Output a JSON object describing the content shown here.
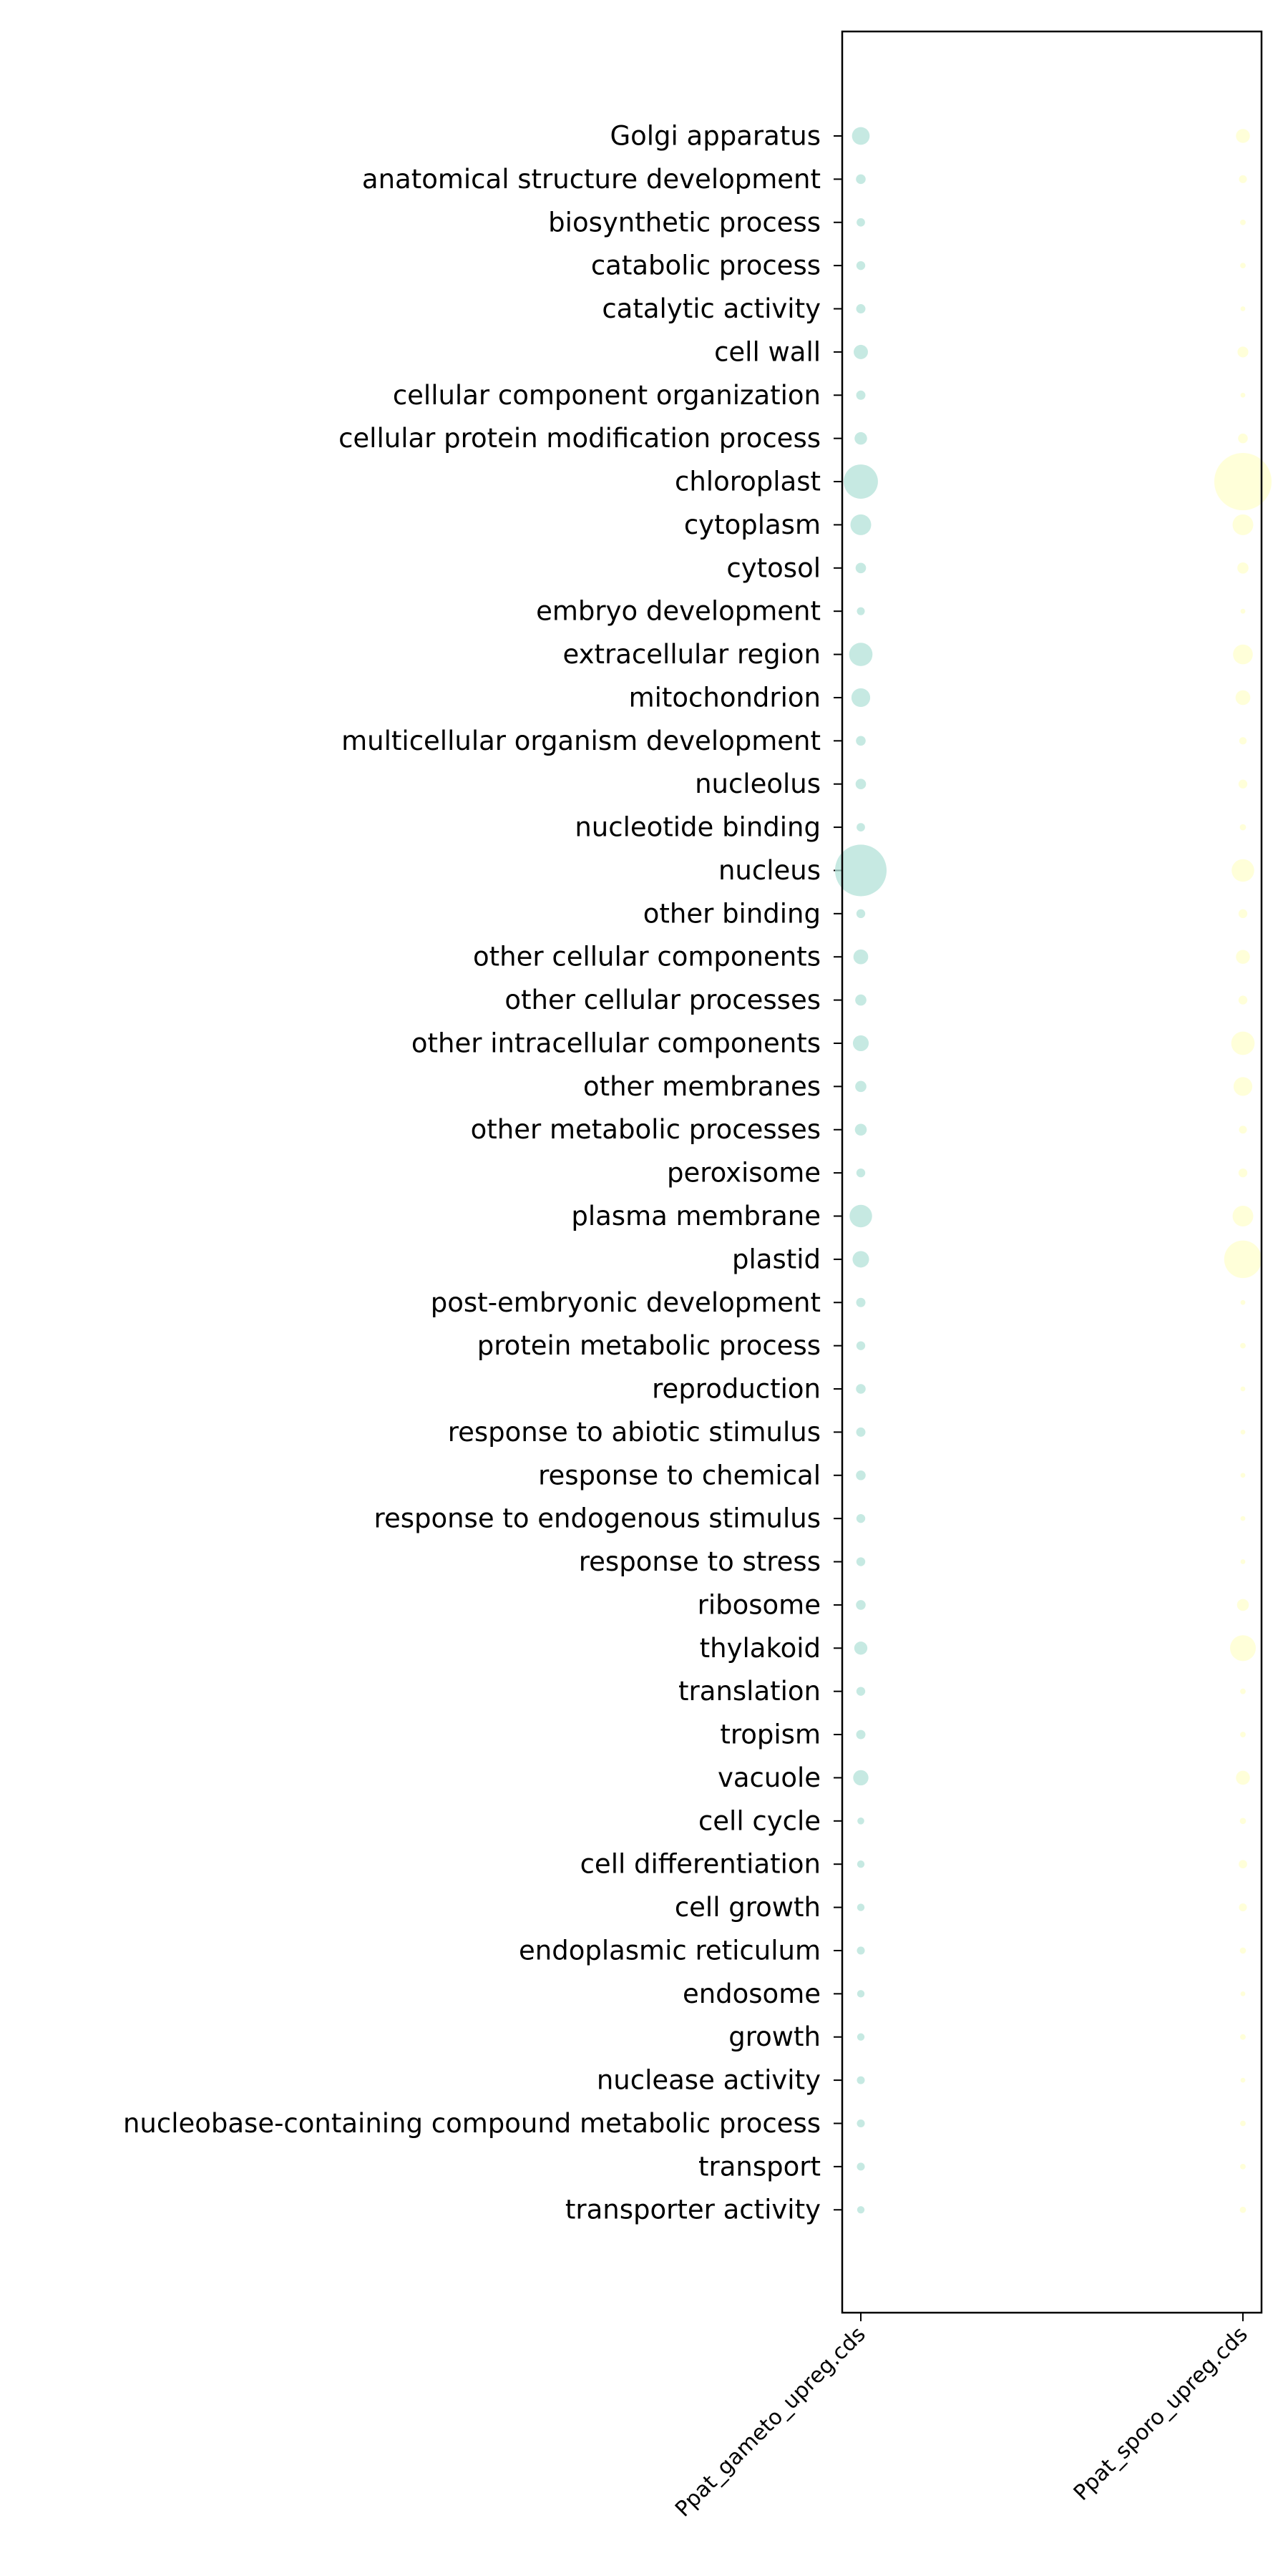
{
  "chart_data": {
    "type": "scatter",
    "title": "",
    "xlabel": "",
    "ylabel": "",
    "grid": false,
    "legend": "none",
    "x_categories": [
      "Ppat_gameto_upreg.cds",
      "Ppat_sporo_upreg.cds"
    ],
    "y_categories": [
      "Golgi apparatus",
      "anatomical structure development",
      "biosynthetic process",
      "catabolic process",
      "catalytic activity",
      "cell wall",
      "cellular component organization",
      "cellular protein modification process",
      "chloroplast",
      "cytoplasm",
      "cytosol",
      "embryo development",
      "extracellular region",
      "mitochondrion",
      "multicellular organism development",
      "nucleolus",
      "nucleotide binding",
      "nucleus",
      "other binding",
      "other cellular components",
      "other cellular processes",
      "other intracellular components",
      "other membranes",
      "other metabolic processes",
      "peroxisome",
      "plasma membrane",
      "plastid",
      "post-embryonic development",
      "protein metabolic process",
      "reproduction",
      "response to abiotic stimulus",
      "response to chemical",
      "response to endogenous stimulus",
      "response to stress",
      "ribosome",
      "thylakoid",
      "translation",
      "tropism",
      "vacuole",
      "cell cycle",
      "cell differentiation",
      "cell growth",
      "endoplasmic reticulum",
      "endosome",
      "growth",
      "nuclease activity",
      "nucleobase-containing compound metabolic process",
      "transport",
      "transporter activity"
    ],
    "series": [
      {
        "color": "#b3e2d8",
        "sizes": [
          40,
          12,
          9,
          10,
          11,
          26,
          11,
          20,
          150,
          55,
          14,
          8,
          70,
          45,
          12,
          14,
          9,
          340,
          10,
          28,
          16,
          32,
          16,
          18,
          10,
          65,
          35,
          11,
          10,
          12,
          11,
          12,
          10,
          10,
          12,
          22,
          10,
          11,
          30,
          6,
          7,
          7,
          8,
          7,
          7,
          8,
          8,
          8,
          7
        ]
      },
      {
        "color": "#ffffcc",
        "sizes": [
          25,
          8,
          4,
          4,
          3,
          15,
          3,
          12,
          420,
          55,
          16,
          3,
          50,
          28,
          7,
          10,
          5,
          65,
          10,
          25,
          10,
          70,
          45,
          8,
          10,
          55,
          180,
          3,
          4,
          3,
          3,
          3,
          3,
          3,
          18,
          85,
          4,
          4,
          25,
          5,
          9,
          8,
          5,
          3,
          4,
          3,
          4,
          4,
          5
        ]
      }
    ],
    "alpha": 0.75
  }
}
